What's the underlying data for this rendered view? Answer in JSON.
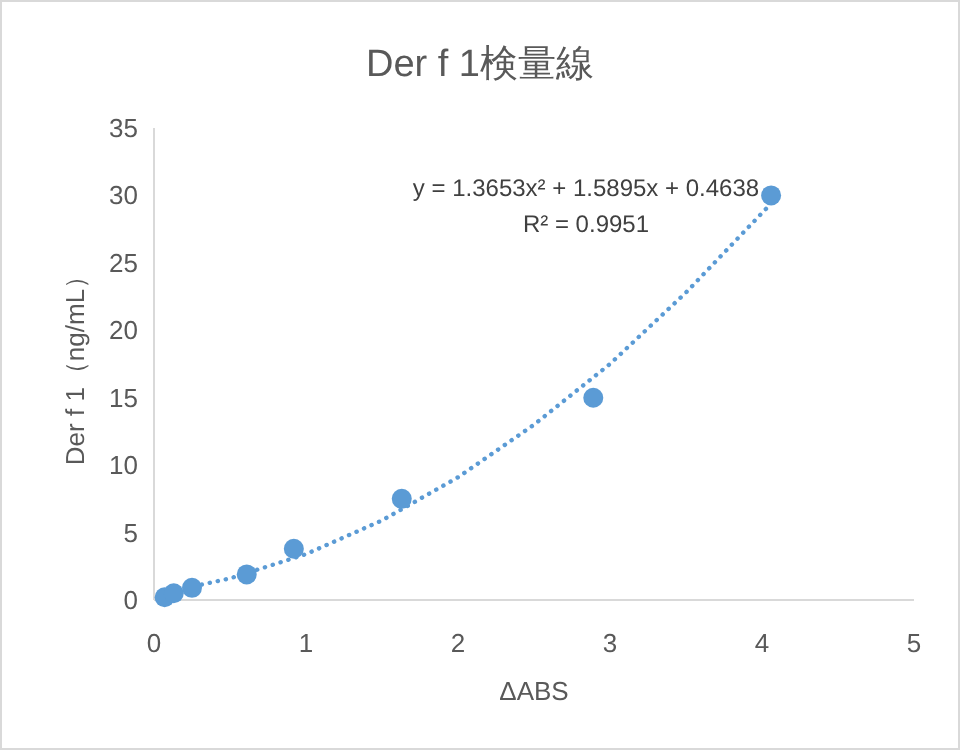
{
  "chart_data": {
    "type": "scatter",
    "title": "Der f 1検量線",
    "xlabel": "ΔABS",
    "ylabel": "Der f 1（ng/mL）",
    "xlim": [
      0,
      5
    ],
    "xticks": [
      0,
      1,
      2,
      3,
      4,
      5
    ],
    "ylim": [
      0,
      35
    ],
    "yticks": [
      0,
      5,
      10,
      15,
      20,
      25,
      30,
      35
    ],
    "grid": false,
    "series": [
      {
        "type": "line",
        "color": "#5b9bd5",
        "line_style": "dotted",
        "marker": "none",
        "x": [
          0.05,
          0.5,
          1,
          1.5,
          2,
          2.5,
          3,
          3.5,
          4.06
        ],
        "values": [
          0.5,
          1.6,
          3.4,
          5.9,
          9.1,
          13.0,
          17.5,
          22.8,
          29.4
        ]
      },
      {
        "type": "scatter",
        "color": "#5b9bd5",
        "marker": "circle",
        "x": [
          0.07,
          0.13,
          0.25,
          0.61,
          0.92,
          1.63,
          2.89,
          4.06
        ],
        "values": [
          0.2,
          0.5,
          0.9,
          1.9,
          3.8,
          7.5,
          15,
          30
        ]
      }
    ],
    "annotations": [
      "y = 1.3653x² + 1.5895x + 0.4638",
      "R² = 0.9951"
    ]
  }
}
